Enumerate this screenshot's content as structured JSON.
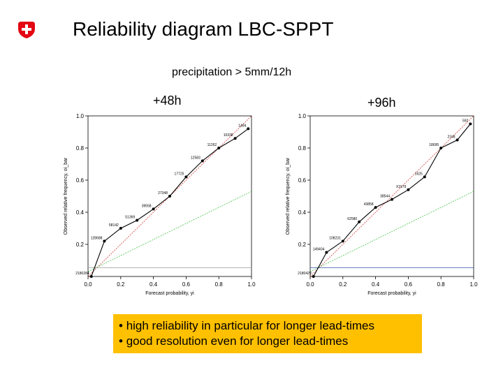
{
  "header": {
    "title": "Reliability diagram LBC-SPPT",
    "subtitle": "precipitation > 5mm/12h",
    "logo": "swiss-cross-icon",
    "logo_color": "#e30613"
  },
  "panels": {
    "left_label": "+48h",
    "right_label": "+96h"
  },
  "chart_data": [
    {
      "type": "line",
      "title": "+48h",
      "xlabel": "Forecast probability, yi",
      "ylabel": "Observed relative frequency, oi_bar",
      "xlim": [
        0,
        1
      ],
      "ylim": [
        0,
        1
      ],
      "x_ticks": [
        "0.0",
        "0.2",
        "0.4",
        "0.6",
        "0.8",
        "1.0"
      ],
      "y_ticks": [
        "0.2",
        "0.4",
        "0.6",
        "0.8",
        "1.0"
      ],
      "series": [
        {
          "name": "reliability",
          "color": "#000000",
          "x": [
            0.02,
            0.1,
            0.2,
            0.3,
            0.4,
            0.5,
            0.6,
            0.7,
            0.8,
            0.9,
            0.98
          ],
          "y": [
            0.0,
            0.22,
            0.3,
            0.35,
            0.42,
            0.5,
            0.62,
            0.72,
            0.8,
            0.86,
            0.92
          ],
          "labels": [
            "2180284",
            "128688",
            "58142",
            "51369",
            "39558",
            "27348",
            "17725",
            "12583",
            "11262",
            "10338",
            "1494"
          ]
        },
        {
          "name": "perfect reliability",
          "color": "#cc2222",
          "x": [
            0,
            1
          ],
          "y": [
            0,
            1
          ]
        },
        {
          "name": "no skill",
          "color": "#33bb33",
          "x": [
            0,
            1
          ],
          "y": [
            0.03,
            0.53
          ]
        },
        {
          "name": "climatology",
          "color": "#999999",
          "x": [
            0,
            1
          ],
          "y": [
            0.055,
            0.055
          ]
        }
      ]
    },
    {
      "type": "line",
      "title": "+96h",
      "xlabel": "Forecast probability, yi",
      "ylabel": "Observed relative frequency, oi_bar",
      "xlim": [
        0,
        1
      ],
      "ylim": [
        0,
        1
      ],
      "x_ticks": [
        "0.0",
        "0.2",
        "0.4",
        "0.6",
        "0.8",
        "1.0"
      ],
      "y_ticks": [
        "0.2",
        "0.4",
        "0.6",
        "0.8",
        "1.0"
      ],
      "series": [
        {
          "name": "reliability",
          "color": "#000000",
          "x": [
            0.02,
            0.1,
            0.2,
            0.3,
            0.4,
            0.5,
            0.6,
            0.7,
            0.8,
            0.9,
            0.98
          ],
          "y": [
            0.0,
            0.15,
            0.22,
            0.34,
            0.43,
            0.48,
            0.54,
            0.62,
            0.8,
            0.85,
            0.95
          ],
          "labels": [
            "2180429",
            "149404",
            "108231",
            "62580",
            "43858",
            "38544",
            "X1579",
            "1625",
            "18695",
            "2168",
            "592"
          ]
        },
        {
          "name": "perfect reliability",
          "color": "#cc2222",
          "x": [
            0,
            1
          ],
          "y": [
            0,
            1
          ]
        },
        {
          "name": "no skill",
          "color": "#33bb33",
          "x": [
            0,
            1
          ],
          "y": [
            0.03,
            0.53
          ]
        },
        {
          "name": "climatology",
          "color": "#3355aa",
          "x": [
            0,
            1
          ],
          "y": [
            0.055,
            0.055
          ]
        }
      ]
    }
  ],
  "notes": {
    "background": "#ffc000",
    "bullet": "•",
    "line1": "high reliability in particular for longer lead-times",
    "line2": "good resolution even for longer lead-times"
  }
}
